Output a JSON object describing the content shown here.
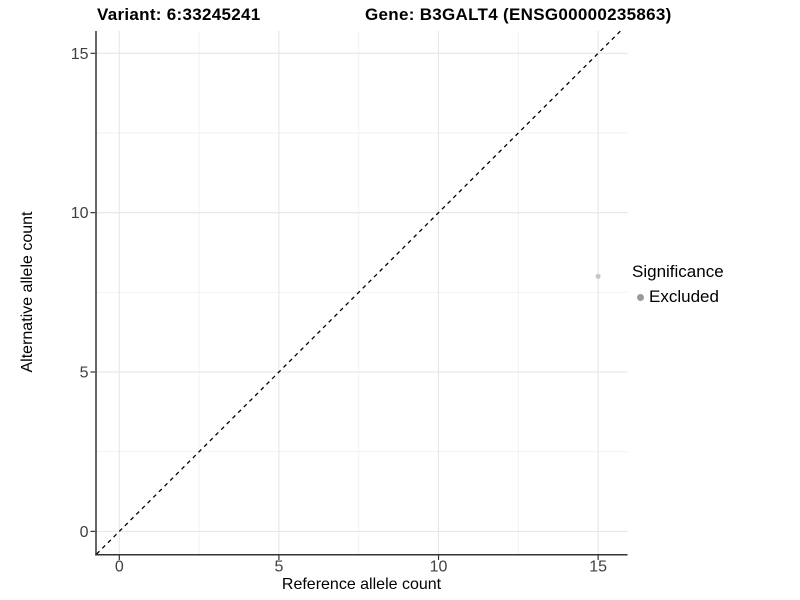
{
  "title": {
    "variant": "Variant: 6:33245241",
    "gene": "Gene: B3GALT4 (ENSG00000235863)"
  },
  "axes": {
    "x_label": "Reference allele count",
    "y_label": "Alternative allele count"
  },
  "legend": {
    "title": "Significance",
    "items": [
      {
        "label": "Excluded",
        "color": "#9b9b9b"
      }
    ]
  },
  "colors": {
    "background": "#ffffff",
    "grid_major": "#e6e6e6",
    "grid_minor": "#f2f2f2",
    "axis_line": "#333333",
    "tick_label": "#404040",
    "title_text": "#000000"
  },
  "chart_data": {
    "type": "scatter",
    "title": "Variant: 6:33245241    Gene: B3GALT4 (ENSG00000235863)",
    "xlabel": "Reference allele count",
    "ylabel": "Alternative allele count",
    "xlim": [
      -0.73,
      15.92
    ],
    "ylim": [
      -0.71,
      15.7
    ],
    "x_ticks": [
      0,
      5,
      10,
      15
    ],
    "y_ticks": [
      0,
      5,
      10,
      15
    ],
    "x_minor_ticks": [
      2.5,
      7.5,
      12.5
    ],
    "y_minor_ticks": [
      2.5,
      7.5,
      12.5
    ],
    "grid": "major+minor",
    "legend_position": "right",
    "series": [
      {
        "name": "Excluded",
        "color": "#c6c6c6",
        "marker_radius": 2.5,
        "points": [
          {
            "x": 15,
            "y": 8
          }
        ]
      }
    ],
    "reference_line": {
      "type": "identity",
      "slope": 1,
      "intercept": 0,
      "style": "dashed",
      "color": "#000000"
    }
  }
}
